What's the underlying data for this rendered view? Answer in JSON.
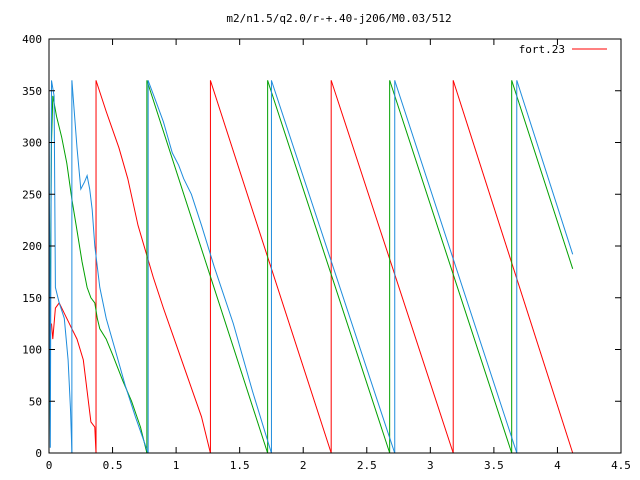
{
  "chart_data": {
    "type": "line",
    "title": "m2/n1.5/q2.0/r-+.40-j206/M0.03/512",
    "xlabel": "",
    "ylabel": "",
    "xlim": [
      0,
      4.5
    ],
    "ylim": [
      0,
      400
    ],
    "x_ticks": [
      "0",
      "0.5",
      "1",
      "1.5",
      "2",
      "2.5",
      "3",
      "3.5",
      "4",
      "4.5"
    ],
    "y_ticks": [
      "0",
      "50",
      "100",
      "150",
      "200",
      "250",
      "300",
      "350",
      "400"
    ],
    "grid": false,
    "legend_position": "top-right",
    "series": [
      {
        "name": "fort.23",
        "color": "#ff0000",
        "segments": [
          [
            [
              0.02,
              125
            ],
            [
              0.03,
              110
            ],
            [
              0.05,
              140
            ],
            [
              0.08,
              145
            ],
            [
              0.12,
              135
            ],
            [
              0.18,
              120
            ],
            [
              0.22,
              110
            ],
            [
              0.27,
              90
            ],
            [
              0.3,
              60
            ],
            [
              0.33,
              30
            ],
            [
              0.36,
              25
            ],
            [
              0.37,
              0
            ]
          ],
          [
            [
              0.37,
              360
            ],
            [
              0.45,
              330
            ],
            [
              0.55,
              295
            ],
            [
              0.62,
              265
            ],
            [
              0.7,
              220
            ],
            [
              0.76,
              195
            ],
            [
              0.82,
              170
            ],
            [
              0.9,
              140
            ],
            [
              1.0,
              105
            ],
            [
              1.1,
              70
            ],
            [
              1.2,
              35
            ],
            [
              1.27,
              0
            ]
          ],
          [
            [
              1.27,
              360
            ],
            [
              2.22,
              0
            ]
          ],
          [
            [
              2.22,
              360
            ],
            [
              3.18,
              0
            ]
          ],
          [
            [
              3.18,
              360
            ],
            [
              4.12,
              0
            ]
          ]
        ]
      },
      {
        "name": "",
        "color": "#00a000",
        "segments": [
          [
            [
              0.0,
              10
            ],
            [
              0.01,
              160
            ],
            [
              0.02,
              300
            ],
            [
              0.03,
              345
            ],
            [
              0.06,
              325
            ],
            [
              0.1,
              305
            ],
            [
              0.14,
              280
            ],
            [
              0.18,
              245
            ],
            [
              0.22,
              215
            ],
            [
              0.26,
              185
            ],
            [
              0.3,
              160
            ],
            [
              0.33,
              150
            ],
            [
              0.36,
              145
            ],
            [
              0.38,
              130
            ],
            [
              0.4,
              120
            ],
            [
              0.45,
              110
            ],
            [
              0.5,
              95
            ],
            [
              0.58,
              70
            ],
            [
              0.65,
              50
            ],
            [
              0.72,
              25
            ],
            [
              0.77,
              0
            ]
          ],
          [
            [
              0.77,
              360
            ],
            [
              1.72,
              0
            ]
          ],
          [
            [
              1.72,
              360
            ],
            [
              2.68,
              0
            ]
          ],
          [
            [
              2.68,
              360
            ],
            [
              3.64,
              0
            ]
          ],
          [
            [
              3.64,
              360
            ],
            [
              4.12,
              178
            ]
          ]
        ]
      },
      {
        "name": "",
        "color": "#1e8cdc",
        "segments": [
          [
            [
              0.0,
              355
            ],
            [
              0.01,
              5
            ],
            [
              0.02,
              360
            ],
            [
              0.04,
              345
            ],
            [
              0.05,
              160
            ],
            [
              0.08,
              145
            ],
            [
              0.12,
              130
            ],
            [
              0.15,
              90
            ],
            [
              0.17,
              40
            ],
            [
              0.18,
              0
            ]
          ],
          [
            [
              0.18,
              360
            ],
            [
              0.22,
              295
            ],
            [
              0.25,
              255
            ],
            [
              0.28,
              262
            ],
            [
              0.3,
              268
            ],
            [
              0.32,
              255
            ],
            [
              0.34,
              235
            ],
            [
              0.36,
              200
            ],
            [
              0.4,
              160
            ],
            [
              0.45,
              130
            ],
            [
              0.52,
              100
            ],
            [
              0.6,
              65
            ],
            [
              0.68,
              35
            ],
            [
              0.78,
              0
            ]
          ],
          [
            [
              0.78,
              360
            ],
            [
              0.84,
              340
            ],
            [
              0.9,
              320
            ],
            [
              0.97,
              290
            ],
            [
              1.02,
              278
            ],
            [
              1.06,
              265
            ],
            [
              1.12,
              250
            ],
            [
              1.2,
              220
            ],
            [
              1.3,
              180
            ],
            [
              1.45,
              125
            ],
            [
              1.6,
              60
            ],
            [
              1.75,
              0
            ]
          ],
          [
            [
              1.75,
              360
            ],
            [
              2.72,
              0
            ]
          ],
          [
            [
              2.72,
              360
            ],
            [
              3.68,
              0
            ]
          ],
          [
            [
              3.68,
              360
            ],
            [
              4.12,
              192
            ]
          ]
        ]
      }
    ]
  }
}
